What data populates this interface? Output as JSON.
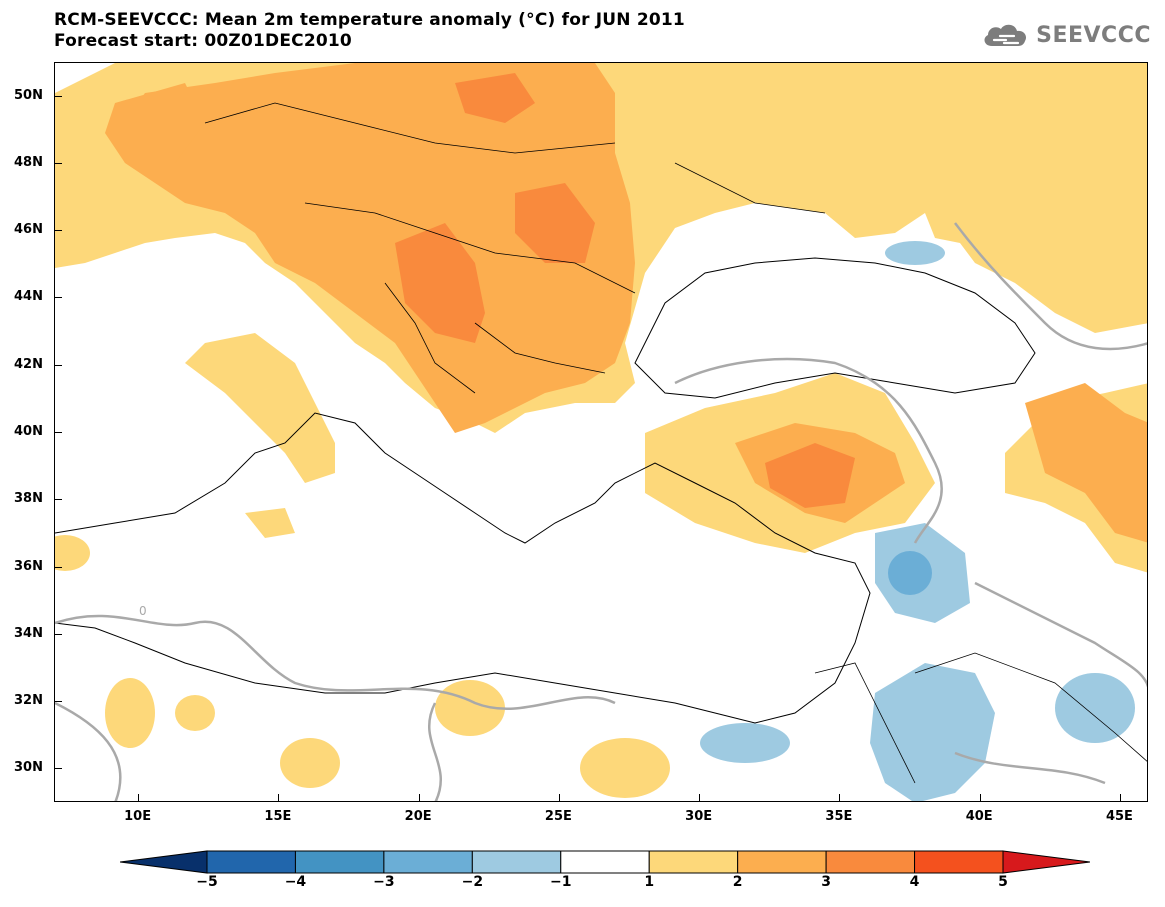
{
  "title": {
    "line1": "RCM-SEEVCCC: Mean 2m temperature anomaly (°C) for JUN 2011",
    "line2": "Forecast start: 00Z01DEC2010"
  },
  "logo": {
    "text": "SEEVCCC",
    "icon": "cloud-icon"
  },
  "map": {
    "lon_range": [
      7,
      46
    ],
    "lat_range": [
      29,
      51
    ],
    "lat_ticks": [
      "50N",
      "48N",
      "46N",
      "44N",
      "42N",
      "40N",
      "38N",
      "36N",
      "34N",
      "32N",
      "30N"
    ],
    "lon_ticks": [
      "10E",
      "15E",
      "20E",
      "25E",
      "30E",
      "35E",
      "40E",
      "45E"
    ],
    "contour_label": "0"
  },
  "colorbar": {
    "labels": [
      "−5",
      "−4",
      "−3",
      "−2",
      "−1",
      "1",
      "2",
      "3",
      "4",
      "5"
    ],
    "colors": [
      "#08306b",
      "#2166ac",
      "#4393c3",
      "#6baed6",
      "#9ecae1",
      "#ffffff",
      "#fdd87a",
      "#fcae4f",
      "#f98a3d",
      "#f4511e",
      "#d7191c"
    ]
  },
  "colors": {
    "warm1": "#fdd87a",
    "warm2": "#fcae4f",
    "warm3": "#f98a3d",
    "cool1": "#9ecae1",
    "cool2": "#6baed6",
    "contour": "#a9a9a9"
  }
}
